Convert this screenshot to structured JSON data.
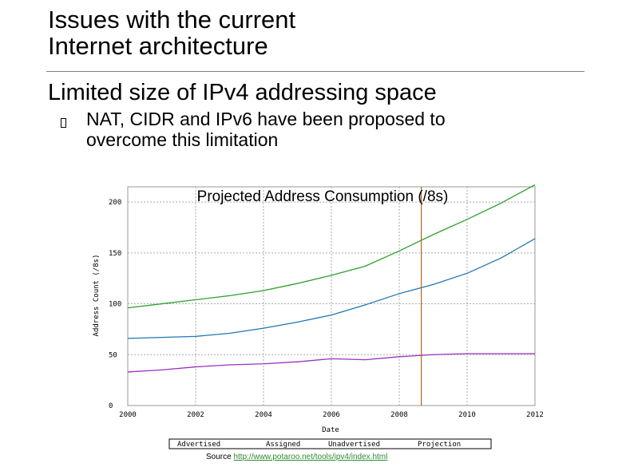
{
  "slide": {
    "title_line1": "Issues with the current",
    "title_line2": "Internet architecture",
    "bullet1": "Limited size of IPv4 addressing space",
    "bullet2_line1": "NAT, CIDR and IPv6 have been proposed to",
    "bullet2_line2": "overcome this limitation",
    "source_prefix": "Source ",
    "source_link": "http://www.potaroo.net/tools/ipv4/index.html"
  },
  "chart_data": {
    "type": "line",
    "title": "Projected Address Consumption (/8s)",
    "xlabel": "Date",
    "ylabel": "Address Count (/8s)",
    "xlim": [
      2000,
      2012
    ],
    "ylim": [
      0,
      215
    ],
    "x_ticks": [
      2000,
      2002,
      2004,
      2006,
      2008,
      2010,
      2012
    ],
    "y_ticks": [
      0,
      50,
      100,
      150,
      200
    ],
    "grid": true,
    "legend": [
      "Advertised",
      "Assigned",
      "Unadvertised",
      "Projection"
    ],
    "projection_marker_x": 2008.65,
    "series": [
      {
        "name": "Assigned",
        "color": "#2ca02c",
        "x": [
          2000,
          2001,
          2002,
          2003,
          2004,
          2005,
          2006,
          2007,
          2008,
          2009,
          2010,
          2011,
          2012
        ],
        "y": [
          96,
          100,
          104,
          108,
          113,
          120,
          128,
          137,
          152,
          168,
          183,
          199,
          217
        ]
      },
      {
        "name": "Advertised",
        "color": "#1f77b4",
        "x": [
          2000,
          2001,
          2002,
          2003,
          2004,
          2005,
          2006,
          2007,
          2008,
          2009,
          2010,
          2011,
          2012
        ],
        "y": [
          66,
          67,
          68,
          71,
          76,
          82,
          89,
          99,
          110,
          119,
          130,
          145,
          164
        ]
      },
      {
        "name": "Unadvertised",
        "color": "#9b30c0",
        "x": [
          2000,
          2001,
          2002,
          2003,
          2004,
          2005,
          2006,
          2007,
          2008,
          2009,
          2010,
          2011,
          2012
        ],
        "y": [
          33,
          35,
          38,
          40,
          41,
          43,
          46,
          45,
          48,
          50,
          51,
          51,
          51
        ]
      }
    ]
  }
}
